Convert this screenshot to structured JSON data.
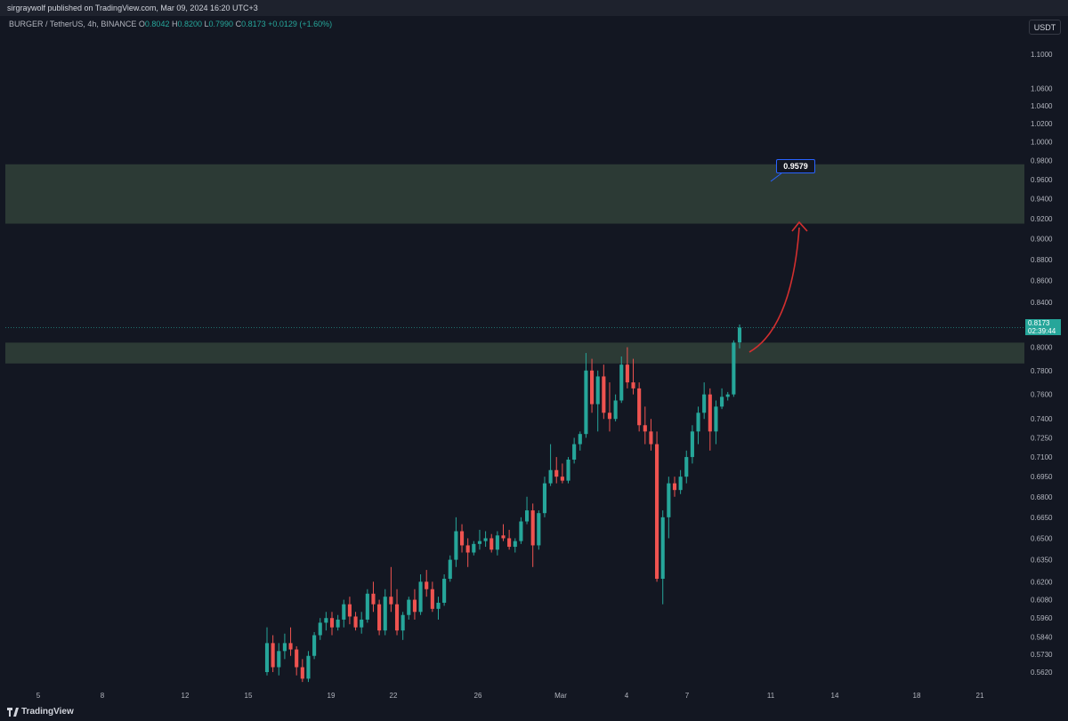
{
  "header": {
    "published": "sirgraywolf published on TradingView.com, Mar 09, 2024 16:20 UTC+3"
  },
  "legend": {
    "symbol": "BURGER / TetherUS, 4h, BINANCE",
    "o_label": "O",
    "o": "0.8042",
    "h_label": "H",
    "h": "0.8200",
    "l_label": "L",
    "l": "0.7990",
    "c_label": "C",
    "c": "0.8173",
    "change": "+0.0129 (+1.60%)"
  },
  "currency": "USDT",
  "price_tag": {
    "price": "0.8173",
    "countdown": "02:39:44"
  },
  "callout": {
    "value": "0.9579"
  },
  "footer": {
    "brand": "TradingView"
  },
  "colors": {
    "up": "#26a69a",
    "down": "#ef5350",
    "zone": "#2c3a35",
    "arrow": "#d32f2f",
    "bg": "#131722"
  },
  "chart_data": {
    "type": "candlestick",
    "title": "BURGER / TetherUS, 4h, BINANCE",
    "scale": "log",
    "ylim": [
      0.555,
      1.125
    ],
    "y_ticks": [
      "1.1000",
      "1.0600",
      "1.0400",
      "1.0200",
      "1.0000",
      "0.9800",
      "0.9600",
      "0.9400",
      "0.9200",
      "0.9000",
      "0.8800",
      "0.8600",
      "0.8400",
      "0.8200",
      "0.8000",
      "0.7800",
      "0.7600",
      "0.7400",
      "0.7250",
      "0.7100",
      "0.6950",
      "0.6800",
      "0.6650",
      "0.6500",
      "0.6350",
      "0.6200",
      "0.6080",
      "0.5960",
      "0.5840",
      "0.5730",
      "0.5620"
    ],
    "x_ticks": [
      "5",
      "8",
      "12",
      "15",
      "19",
      "22",
      "26",
      "Mar",
      "4",
      "7",
      "11",
      "14",
      "18",
      "21"
    ],
    "zones": [
      {
        "low": 0.915,
        "high": 0.976
      },
      {
        "low": 0.786,
        "high": 0.804
      }
    ],
    "last_price": 0.8173,
    "target": 0.9579,
    "candles_ohlc": [
      [
        0.562,
        0.59,
        0.56,
        0.58
      ],
      [
        0.58,
        0.585,
        0.562,
        0.565
      ],
      [
        0.565,
        0.58,
        0.56,
        0.575
      ],
      [
        0.575,
        0.586,
        0.57,
        0.58
      ],
      [
        0.58,
        0.59,
        0.572,
        0.576
      ],
      [
        0.576,
        0.578,
        0.56,
        0.565
      ],
      [
        0.565,
        0.57,
        0.556,
        0.558
      ],
      [
        0.558,
        0.575,
        0.556,
        0.572
      ],
      [
        0.572,
        0.587,
        0.57,
        0.585
      ],
      [
        0.585,
        0.596,
        0.582,
        0.593
      ],
      [
        0.593,
        0.6,
        0.588,
        0.596
      ],
      [
        0.596,
        0.6,
        0.585,
        0.59
      ],
      [
        0.59,
        0.598,
        0.588,
        0.595
      ],
      [
        0.595,
        0.608,
        0.59,
        0.605
      ],
      [
        0.605,
        0.61,
        0.592,
        0.597
      ],
      [
        0.597,
        0.6,
        0.588,
        0.59
      ],
      [
        0.59,
        0.6,
        0.586,
        0.595
      ],
      [
        0.595,
        0.615,
        0.593,
        0.612
      ],
      [
        0.612,
        0.62,
        0.6,
        0.605
      ],
      [
        0.605,
        0.608,
        0.585,
        0.588
      ],
      [
        0.588,
        0.615,
        0.585,
        0.61
      ],
      [
        0.61,
        0.63,
        0.6,
        0.605
      ],
      [
        0.605,
        0.615,
        0.585,
        0.588
      ],
      [
        0.588,
        0.6,
        0.582,
        0.598
      ],
      [
        0.598,
        0.61,
        0.595,
        0.608
      ],
      [
        0.608,
        0.615,
        0.595,
        0.6
      ],
      [
        0.6,
        0.625,
        0.598,
        0.62
      ],
      [
        0.62,
        0.628,
        0.61,
        0.615
      ],
      [
        0.615,
        0.62,
        0.6,
        0.602
      ],
      [
        0.602,
        0.61,
        0.595,
        0.606
      ],
      [
        0.606,
        0.625,
        0.604,
        0.622
      ],
      [
        0.622,
        0.638,
        0.62,
        0.635
      ],
      [
        0.635,
        0.665,
        0.63,
        0.655
      ],
      [
        0.655,
        0.66,
        0.64,
        0.645
      ],
      [
        0.645,
        0.65,
        0.63,
        0.64
      ],
      [
        0.64,
        0.648,
        0.638,
        0.646
      ],
      [
        0.646,
        0.656,
        0.642,
        0.648
      ],
      [
        0.648,
        0.655,
        0.644,
        0.65
      ],
      [
        0.65,
        0.653,
        0.64,
        0.642
      ],
      [
        0.642,
        0.655,
        0.638,
        0.652
      ],
      [
        0.652,
        0.66,
        0.648,
        0.65
      ],
      [
        0.65,
        0.656,
        0.642,
        0.644
      ],
      [
        0.644,
        0.65,
        0.64,
        0.648
      ],
      [
        0.648,
        0.665,
        0.646,
        0.662
      ],
      [
        0.662,
        0.68,
        0.66,
        0.67
      ],
      [
        0.67,
        0.675,
        0.63,
        0.645
      ],
      [
        0.645,
        0.67,
        0.642,
        0.668
      ],
      [
        0.668,
        0.695,
        0.665,
        0.69
      ],
      [
        0.69,
        0.72,
        0.688,
        0.7
      ],
      [
        0.7,
        0.71,
        0.69,
        0.695
      ],
      [
        0.695,
        0.705,
        0.69,
        0.692
      ],
      [
        0.692,
        0.71,
        0.69,
        0.708
      ],
      [
        0.708,
        0.725,
        0.705,
        0.72
      ],
      [
        0.72,
        0.73,
        0.715,
        0.728
      ],
      [
        0.728,
        0.795,
        0.725,
        0.78
      ],
      [
        0.78,
        0.79,
        0.745,
        0.752
      ],
      [
        0.752,
        0.78,
        0.73,
        0.775
      ],
      [
        0.775,
        0.785,
        0.74,
        0.745
      ],
      [
        0.745,
        0.77,
        0.73,
        0.74
      ],
      [
        0.74,
        0.76,
        0.738,
        0.755
      ],
      [
        0.755,
        0.792,
        0.753,
        0.785
      ],
      [
        0.785,
        0.8,
        0.765,
        0.77
      ],
      [
        0.77,
        0.79,
        0.76,
        0.765
      ],
      [
        0.765,
        0.77,
        0.73,
        0.735
      ],
      [
        0.735,
        0.75,
        0.72,
        0.73
      ],
      [
        0.73,
        0.74,
        0.715,
        0.72
      ],
      [
        0.72,
        0.73,
        0.62,
        0.622
      ],
      [
        0.622,
        0.67,
        0.605,
        0.665
      ],
      [
        0.665,
        0.695,
        0.65,
        0.69
      ],
      [
        0.69,
        0.695,
        0.68,
        0.685
      ],
      [
        0.685,
        0.7,
        0.682,
        0.695
      ],
      [
        0.695,
        0.715,
        0.69,
        0.71
      ],
      [
        0.71,
        0.735,
        0.705,
        0.73
      ],
      [
        0.73,
        0.75,
        0.72,
        0.745
      ],
      [
        0.745,
        0.77,
        0.74,
        0.76
      ],
      [
        0.76,
        0.765,
        0.715,
        0.73
      ],
      [
        0.73,
        0.755,
        0.72,
        0.75
      ],
      [
        0.75,
        0.765,
        0.748,
        0.758
      ],
      [
        0.758,
        0.762,
        0.755,
        0.76
      ],
      [
        0.76,
        0.806,
        0.758,
        0.804
      ],
      [
        0.8042,
        0.82,
        0.799,
        0.8173
      ]
    ]
  }
}
